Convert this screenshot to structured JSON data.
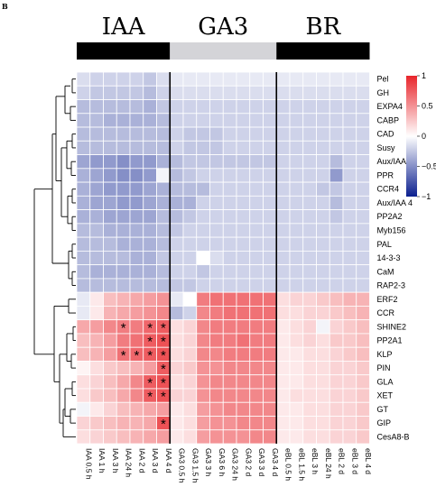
{
  "panel_label": "B",
  "chart_data": {
    "type": "heatmap",
    "groups": [
      {
        "name": "IAA",
        "color": "#000000"
      },
      {
        "name": "GA3",
        "color": "#d4d4d8"
      },
      {
        "name": "BR",
        "color": "#000000"
      }
    ],
    "columns": [
      "IAA 0.5 h",
      "IAA 1 h",
      "IAA 3 h",
      "IAA 24 h",
      "IAA 2 d",
      "IAA 3 d",
      "IAA 4 d",
      "GA3 0.5 h",
      "GA3 1.5 h",
      "GA3 3 h",
      "GA3 6 h",
      "GA3 24 h",
      "GA3 2 d",
      "GA3 3 d",
      "GA3 4 d",
      "eBL 0.5 h",
      "eBL 1.5 h",
      "eBL 3 h",
      "eBL 24 h",
      "eBL 2 d",
      "eBL 3 d",
      "eBL 4 d"
    ],
    "rows": [
      "Pel",
      "GH",
      "EXPA4",
      "CABP",
      "CAD",
      "Susy",
      "Aux/IAA 14",
      "PPR",
      "CCR4",
      "Aux/IAA 4",
      "PP2A2",
      "Myb156",
      "PAL",
      "14-3-3",
      "CaM",
      "RAP2-3",
      "ERF2",
      "CCR",
      "SHINE2",
      "PP2A1",
      "KLP",
      "PIN",
      "GLA",
      "XET",
      "GT",
      "GIP",
      "CesA8-B"
    ],
    "values": [
      [
        -0.15,
        -0.2,
        -0.2,
        -0.2,
        -0.2,
        -0.25,
        -0.15,
        -0.1,
        -0.1,
        -0.1,
        -0.1,
        -0.1,
        -0.1,
        -0.1,
        -0.1,
        -0.1,
        -0.1,
        -0.1,
        -0.1,
        -0.1,
        -0.1,
        -0.1
      ],
      [
        -0.2,
        -0.25,
        -0.25,
        -0.25,
        -0.25,
        -0.3,
        -0.2,
        -0.15,
        -0.15,
        -0.15,
        -0.15,
        -0.15,
        -0.15,
        -0.15,
        -0.15,
        -0.15,
        -0.15,
        -0.15,
        -0.15,
        -0.15,
        -0.15,
        -0.15
      ],
      [
        -0.3,
        -0.3,
        -0.3,
        -0.3,
        -0.3,
        -0.35,
        -0.25,
        -0.2,
        -0.2,
        -0.2,
        -0.2,
        -0.2,
        -0.2,
        -0.2,
        -0.2,
        -0.2,
        -0.2,
        -0.2,
        -0.2,
        -0.2,
        -0.2,
        -0.2
      ],
      [
        -0.3,
        -0.3,
        -0.35,
        -0.35,
        -0.35,
        -0.35,
        -0.3,
        -0.2,
        -0.2,
        -0.2,
        -0.2,
        -0.2,
        -0.2,
        -0.2,
        -0.2,
        -0.2,
        -0.2,
        -0.2,
        -0.2,
        -0.2,
        -0.2,
        -0.2
      ],
      [
        -0.3,
        -0.3,
        -0.3,
        -0.3,
        -0.3,
        -0.3,
        -0.3,
        -0.2,
        -0.25,
        -0.25,
        -0.25,
        -0.2,
        -0.2,
        -0.2,
        -0.2,
        -0.2,
        -0.2,
        -0.2,
        -0.2,
        -0.2,
        -0.2,
        -0.2
      ],
      [
        -0.3,
        -0.3,
        -0.3,
        -0.3,
        -0.3,
        -0.3,
        -0.3,
        -0.2,
        -0.25,
        -0.25,
        -0.25,
        -0.2,
        -0.2,
        -0.2,
        -0.2,
        -0.2,
        -0.2,
        -0.2,
        -0.2,
        -0.2,
        -0.2,
        -0.2
      ],
      [
        -0.4,
        -0.45,
        -0.45,
        -0.5,
        -0.45,
        -0.45,
        -0.35,
        -0.3,
        -0.25,
        -0.25,
        -0.25,
        -0.25,
        -0.25,
        -0.25,
        -0.25,
        -0.2,
        -0.2,
        -0.2,
        -0.2,
        -0.3,
        -0.2,
        -0.2
      ],
      [
        -0.35,
        -0.4,
        -0.45,
        -0.5,
        -0.5,
        -0.45,
        -0.05,
        -0.3,
        -0.25,
        -0.2,
        -0.2,
        -0.2,
        -0.2,
        -0.2,
        -0.2,
        -0.2,
        -0.2,
        -0.2,
        -0.2,
        -0.45,
        -0.2,
        -0.2
      ],
      [
        -0.35,
        -0.4,
        -0.45,
        -0.45,
        -0.45,
        -0.4,
        -0.35,
        -0.3,
        -0.3,
        -0.3,
        -0.2,
        -0.2,
        -0.2,
        -0.2,
        -0.2,
        -0.2,
        -0.2,
        -0.2,
        -0.25,
        -0.25,
        -0.2,
        -0.2
      ],
      [
        -0.35,
        -0.4,
        -0.4,
        -0.45,
        -0.45,
        -0.4,
        -0.35,
        -0.35,
        -0.35,
        -0.2,
        -0.2,
        -0.2,
        -0.2,
        -0.2,
        -0.2,
        -0.2,
        -0.2,
        -0.2,
        -0.2,
        -0.3,
        -0.2,
        -0.2
      ],
      [
        -0.35,
        -0.35,
        -0.4,
        -0.4,
        -0.4,
        -0.4,
        -0.3,
        -0.3,
        -0.25,
        -0.2,
        -0.2,
        -0.2,
        -0.2,
        -0.2,
        -0.2,
        -0.2,
        -0.2,
        -0.2,
        -0.2,
        -0.25,
        -0.2,
        -0.2
      ],
      [
        -0.3,
        -0.3,
        -0.35,
        -0.35,
        -0.35,
        -0.35,
        -0.3,
        -0.25,
        -0.2,
        -0.2,
        -0.2,
        -0.2,
        -0.2,
        -0.2,
        -0.2,
        -0.2,
        -0.2,
        -0.2,
        -0.2,
        -0.2,
        -0.2,
        -0.2
      ],
      [
        -0.3,
        -0.3,
        -0.3,
        -0.35,
        -0.35,
        -0.35,
        -0.3,
        -0.2,
        -0.2,
        -0.2,
        -0.2,
        -0.2,
        -0.2,
        -0.2,
        -0.2,
        -0.2,
        -0.2,
        -0.2,
        -0.2,
        -0.2,
        -0.2,
        -0.2
      ],
      [
        -0.3,
        -0.3,
        -0.3,
        -0.3,
        -0.35,
        -0.35,
        -0.25,
        -0.2,
        -0.2,
        0.0,
        -0.15,
        -0.2,
        -0.2,
        -0.2,
        -0.2,
        -0.2,
        -0.2,
        -0.2,
        -0.2,
        -0.2,
        -0.2,
        -0.2
      ],
      [
        -0.3,
        -0.35,
        -0.35,
        -0.35,
        -0.35,
        -0.35,
        -0.3,
        -0.2,
        -0.2,
        -0.25,
        -0.2,
        -0.2,
        -0.2,
        -0.2,
        -0.2,
        -0.2,
        -0.2,
        -0.2,
        -0.2,
        -0.2,
        -0.2,
        -0.2
      ],
      [
        -0.3,
        -0.3,
        -0.3,
        -0.3,
        -0.3,
        -0.3,
        -0.3,
        -0.25,
        -0.25,
        -0.2,
        -0.2,
        -0.2,
        -0.2,
        -0.2,
        -0.2,
        -0.2,
        -0.2,
        -0.2,
        -0.2,
        -0.2,
        -0.2,
        -0.2
      ],
      [
        -0.1,
        0.1,
        0.3,
        0.35,
        0.4,
        0.45,
        0.5,
        -0.1,
        0.0,
        0.6,
        0.65,
        0.65,
        0.65,
        0.65,
        0.65,
        0.15,
        0.2,
        0.2,
        0.25,
        0.3,
        0.35,
        0.35
      ],
      [
        -0.1,
        0.1,
        0.35,
        0.4,
        0.45,
        0.5,
        0.55,
        -0.3,
        -0.2,
        0.55,
        0.6,
        0.65,
        0.65,
        0.65,
        0.65,
        0.15,
        0.15,
        0.2,
        0.2,
        0.25,
        0.3,
        0.35
      ],
      [
        0.4,
        0.45,
        0.55,
        0.6,
        0.6,
        0.7,
        0.75,
        0.15,
        0.2,
        0.55,
        0.6,
        0.6,
        0.6,
        0.6,
        0.6,
        0.1,
        0.15,
        0.2,
        -0.05,
        0.2,
        0.25,
        0.3
      ],
      [
        0.3,
        0.35,
        0.45,
        0.6,
        0.65,
        0.75,
        0.8,
        0.15,
        0.2,
        0.55,
        0.6,
        0.6,
        0.65,
        0.6,
        0.6,
        0.1,
        0.15,
        0.2,
        0.15,
        0.25,
        0.25,
        0.3
      ],
      [
        0.3,
        0.35,
        0.45,
        0.65,
        0.7,
        0.75,
        0.8,
        0.15,
        0.2,
        0.55,
        0.55,
        0.6,
        0.6,
        0.6,
        0.6,
        0.1,
        0.1,
        0.15,
        0.15,
        0.2,
        0.25,
        0.3
      ],
      [
        0.05,
        0.15,
        0.25,
        0.3,
        0.35,
        0.45,
        0.75,
        0.2,
        0.25,
        0.5,
        0.5,
        0.55,
        0.55,
        0.55,
        0.55,
        0.1,
        0.1,
        0.15,
        0.15,
        0.2,
        0.2,
        0.25
      ],
      [
        0.15,
        0.2,
        0.3,
        0.4,
        0.55,
        0.75,
        0.8,
        0.15,
        0.2,
        0.5,
        0.55,
        0.55,
        0.55,
        0.55,
        0.55,
        0.1,
        0.1,
        0.15,
        0.15,
        0.2,
        0.2,
        0.25
      ],
      [
        0.15,
        0.25,
        0.3,
        0.4,
        0.55,
        0.75,
        0.8,
        0.2,
        0.2,
        0.5,
        0.55,
        0.55,
        0.55,
        0.55,
        0.55,
        0.1,
        0.15,
        0.15,
        0.15,
        0.2,
        0.2,
        0.25
      ],
      [
        -0.05,
        0.1,
        0.2,
        0.3,
        0.35,
        0.4,
        0.45,
        0.1,
        0.15,
        0.45,
        0.5,
        0.55,
        0.55,
        0.55,
        0.55,
        0.1,
        0.1,
        0.15,
        0.15,
        0.2,
        0.2,
        0.25
      ],
      [
        0.2,
        0.25,
        0.3,
        0.35,
        0.35,
        0.4,
        0.8,
        0.1,
        0.15,
        0.45,
        0.5,
        0.5,
        0.55,
        0.55,
        0.55,
        0.1,
        0.1,
        0.15,
        0.15,
        0.2,
        0.2,
        0.25
      ],
      [
        0.15,
        0.2,
        0.25,
        0.3,
        0.35,
        0.4,
        0.45,
        0.1,
        0.15,
        0.45,
        0.5,
        0.5,
        0.5,
        0.55,
        0.55,
        0.1,
        0.1,
        0.15,
        0.15,
        0.2,
        0.2,
        0.25
      ]
    ],
    "significance_mark": "*",
    "significant_cells": [
      [
        "SHINE2",
        "IAA 24 h"
      ],
      [
        "SHINE2",
        "IAA 3 d"
      ],
      [
        "SHINE2",
        "IAA 4 d"
      ],
      [
        "PP2A1",
        "IAA 3 d"
      ],
      [
        "PP2A1",
        "IAA 4 d"
      ],
      [
        "KLP",
        "IAA 24 h"
      ],
      [
        "KLP",
        "IAA 2 d"
      ],
      [
        "KLP",
        "IAA 3 d"
      ],
      [
        "KLP",
        "IAA 4 d"
      ],
      [
        "PIN",
        "IAA 4 d"
      ],
      [
        "GLA",
        "IAA 3 d"
      ],
      [
        "GLA",
        "IAA 4 d"
      ],
      [
        "XET",
        "IAA 3 d"
      ],
      [
        "XET",
        "IAA 4 d"
      ],
      [
        "GIP",
        "IAA 4 d"
      ]
    ],
    "colorscale": {
      "min": -1,
      "max": 1,
      "low_color": "#0b1f8f",
      "mid_color": "#ffffff",
      "high_color": "#e8252b",
      "ticks": [
        1,
        0.5,
        0,
        -0.5,
        -1
      ],
      "tick_labels": [
        "1",
        "0.5",
        "0",
        "−0.5",
        "−1"
      ]
    }
  }
}
